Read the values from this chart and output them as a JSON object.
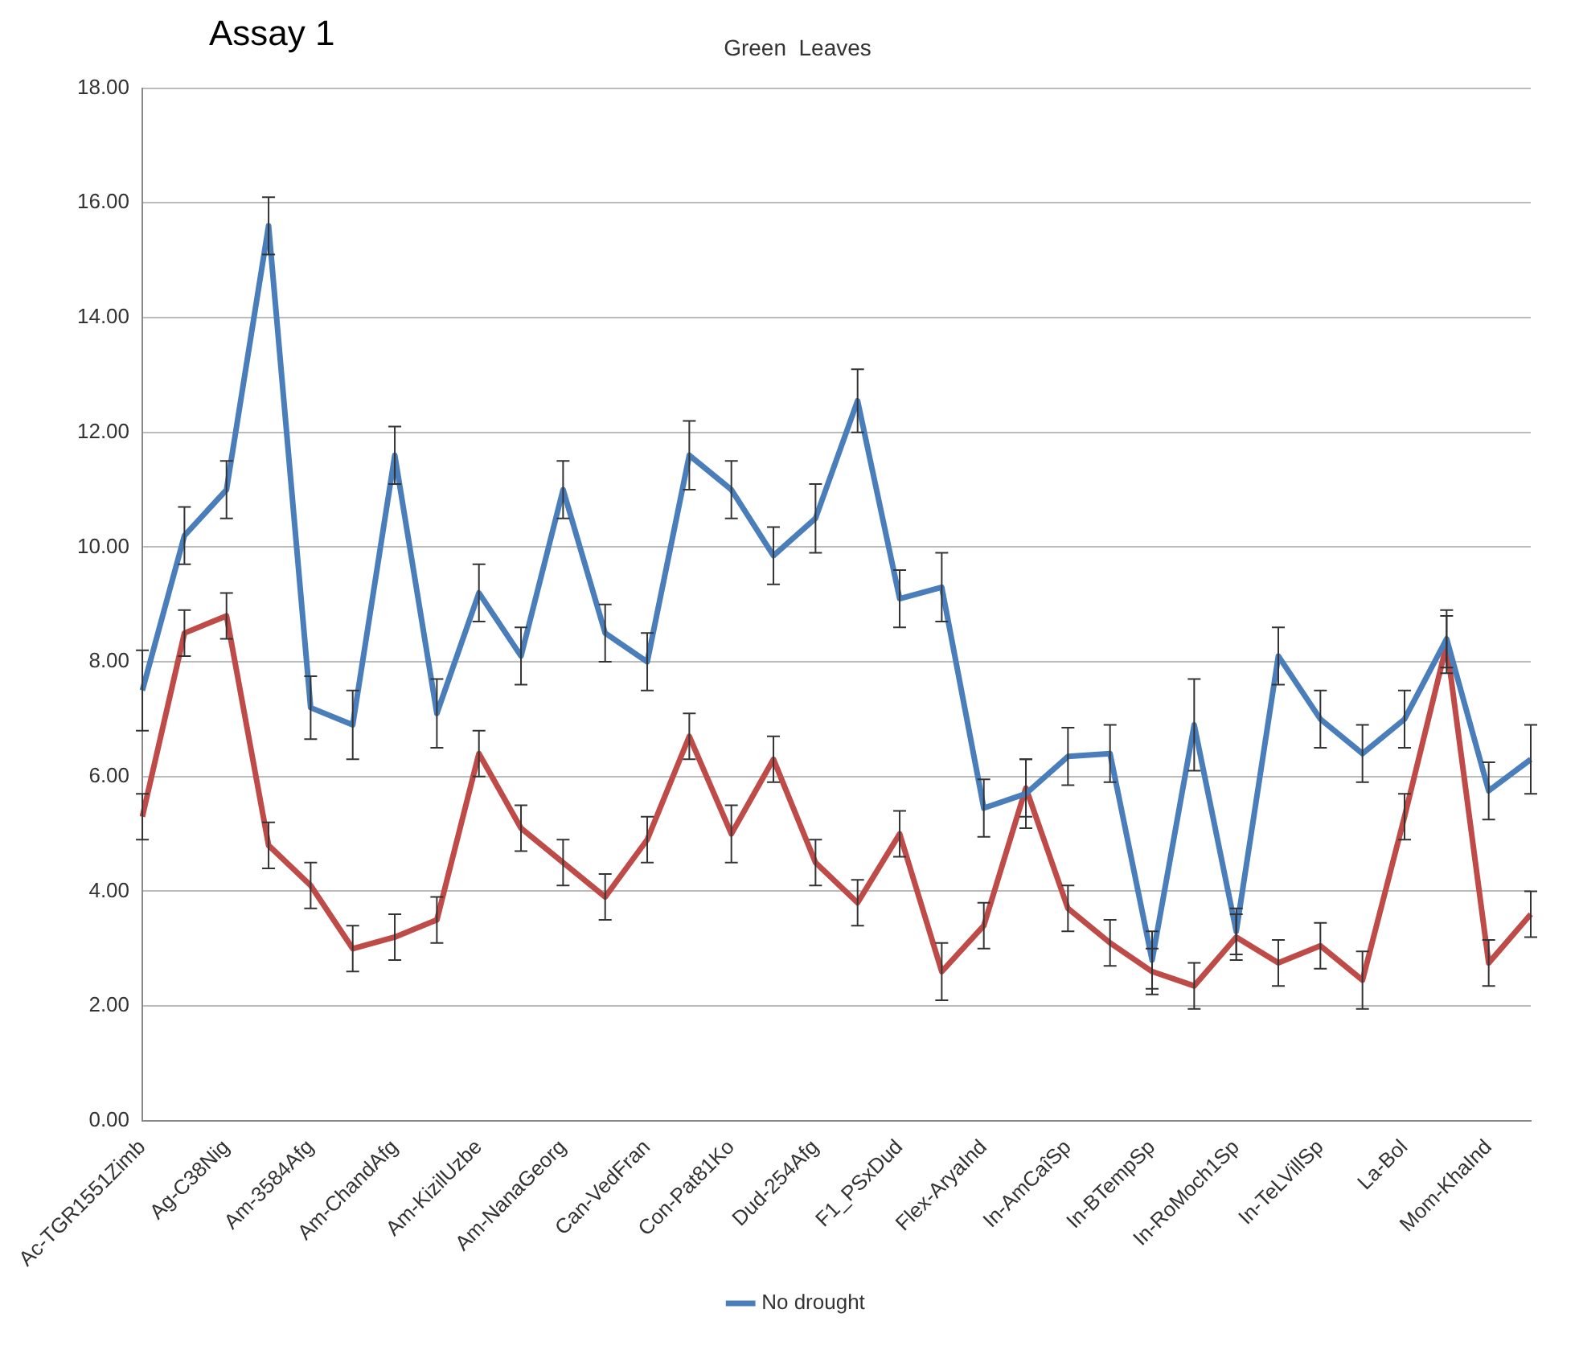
{
  "chart_data": {
    "type": "line",
    "title": "Green  Leaves",
    "annotations": [
      "Assay 1"
    ],
    "categories": [
      "Ac-TGR1551Zimb",
      null,
      "Ag-C38Nig",
      null,
      "Am-3584Afg",
      null,
      "Am-ChandAfg",
      null,
      "Am-KizilUzbe",
      null,
      "Am-NanaGeorg",
      null,
      "Can-VedFran",
      null,
      "Con-Pat81Ko",
      null,
      "Dud-254Afg",
      null,
      "F1_PSxDud",
      null,
      "Flex-AryaInd",
      null,
      "In-AmCaîSp",
      null,
      "In-BTempSp",
      null,
      "In-RoMoch1Sp",
      null,
      "In-TeLVillSp",
      null,
      "La-Bol",
      null,
      "Mom-KhaInd",
      null
    ],
    "series": [
      {
        "name": "No drought",
        "color": "#4a7ebb",
        "values": [
          7.5,
          10.2,
          11.0,
          15.6,
          7.2,
          6.9,
          11.6,
          7.1,
          9.2,
          8.1,
          11.0,
          8.5,
          8.0,
          11.6,
          11.0,
          9.85,
          10.5,
          12.55,
          9.1,
          9.3,
          5.45,
          5.7,
          6.35,
          6.4,
          2.8,
          6.9,
          3.3,
          8.1,
          7.0,
          6.4,
          7.0,
          8.4,
          5.75,
          6.3
        ],
        "errors": [
          0.7,
          0.5,
          0.5,
          0.5,
          0.55,
          0.6,
          0.5,
          0.6,
          0.5,
          0.5,
          0.5,
          0.5,
          0.5,
          0.6,
          0.5,
          0.5,
          0.6,
          0.55,
          0.5,
          0.6,
          0.5,
          0.6,
          0.5,
          0.5,
          0.5,
          0.8,
          0.4,
          0.5,
          0.5,
          0.5,
          0.5,
          0.5,
          0.5,
          0.6
        ]
      },
      {
        "color": "#be4b48",
        "values": [
          5.3,
          8.5,
          8.8,
          4.8,
          4.1,
          3.0,
          3.2,
          3.5,
          6.4,
          5.1,
          4.5,
          3.9,
          4.9,
          6.7,
          5.0,
          6.3,
          4.5,
          3.8,
          5.0,
          2.6,
          3.4,
          5.8,
          3.7,
          3.1,
          2.6,
          2.35,
          3.2,
          2.75,
          3.05,
          2.45,
          5.3,
          8.3,
          2.75,
          3.6
        ],
        "errors": [
          0.4,
          0.4,
          0.4,
          0.4,
          0.4,
          0.4,
          0.4,
          0.4,
          0.4,
          0.4,
          0.4,
          0.4,
          0.4,
          0.4,
          0.5,
          0.4,
          0.4,
          0.4,
          0.4,
          0.5,
          0.4,
          0.5,
          0.4,
          0.4,
          0.4,
          0.4,
          0.4,
          0.4,
          0.4,
          0.5,
          0.4,
          0.5,
          0.4,
          0.4
        ]
      }
    ],
    "ylim": [
      0,
      18
    ],
    "yticks": [
      {
        "value": 0,
        "label": "0.00"
      },
      {
        "value": 2,
        "label": "2.00"
      },
      {
        "value": 4,
        "label": "4.00"
      },
      {
        "value": 6,
        "label": "6.00"
      },
      {
        "value": 8,
        "label": "8.00"
      },
      {
        "value": 10,
        "label": "10.00"
      },
      {
        "value": 12,
        "label": "12.00"
      },
      {
        "value": 14,
        "label": "14.00"
      },
      {
        "value": 16,
        "label": "16.00"
      },
      {
        "value": 18,
        "label": "18.00"
      }
    ],
    "grid": "y",
    "legend": "bottom",
    "marker": "none",
    "line_style": "solid"
  }
}
